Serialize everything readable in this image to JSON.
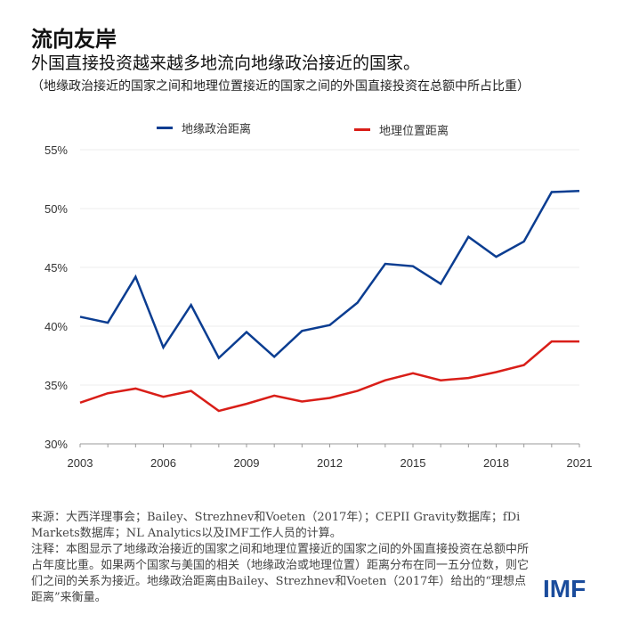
{
  "header": {
    "title": "流向友岸",
    "subtitle": "外国直接投资越来越多地流向地缘政治接近的国家。",
    "note": "（地缘政治接近的国家之间和地理位置接近的国家之间的外国直接投资在总额中所占比重）"
  },
  "chart_data": {
    "type": "line",
    "title": "",
    "xlabel": "",
    "ylabel": "",
    "x": [
      2003,
      2004,
      2005,
      2006,
      2007,
      2008,
      2009,
      2010,
      2011,
      2012,
      2013,
      2014,
      2015,
      2016,
      2017,
      2018,
      2019,
      2020,
      2021
    ],
    "xticks": [
      "2003",
      "2006",
      "2009",
      "2012",
      "2015",
      "2018",
      "2021"
    ],
    "yticks": [
      "30%",
      "35%",
      "40%",
      "45%",
      "50%",
      "55%"
    ],
    "ylim": [
      30,
      55
    ],
    "grid": true,
    "legend": "top",
    "series": [
      {
        "name": "地缘政治距离",
        "color": "#0b3d91",
        "values": [
          40.8,
          40.3,
          44.2,
          38.2,
          41.8,
          37.3,
          39.5,
          37.4,
          39.6,
          40.1,
          42.0,
          45.3,
          45.1,
          43.6,
          47.6,
          45.9,
          47.2,
          51.4,
          51.5
        ]
      },
      {
        "name": "地理位置距离",
        "color": "#d91e18",
        "values": [
          33.5,
          34.3,
          34.7,
          34.0,
          34.5,
          32.8,
          33.4,
          34.1,
          33.6,
          33.9,
          34.5,
          35.4,
          36.0,
          35.4,
          35.6,
          36.1,
          36.7,
          38.7,
          38.7
        ]
      }
    ]
  },
  "footer": {
    "source": "来源：大西洋理事会；Bailey、Strezhnev和Voeten（2017年）；CEPII Gravity数据库；fDi Markets数据库；NL Analytics以及IMF工作人员的计算。",
    "note": "注释：本图显示了地缘政治接近的国家之间和地理位置接近的国家之间的外国直接投资在总额中所占年度比重。如果两个国家与美国的相关（地缘政治或地理位置）距离分布在同一五分位数，则它们之间的关系为接近。地缘政治距离由Bailey、Strezhnev和Voeten（2017年）给出的“理想点距离”来衡量。",
    "logo": "IMF"
  }
}
